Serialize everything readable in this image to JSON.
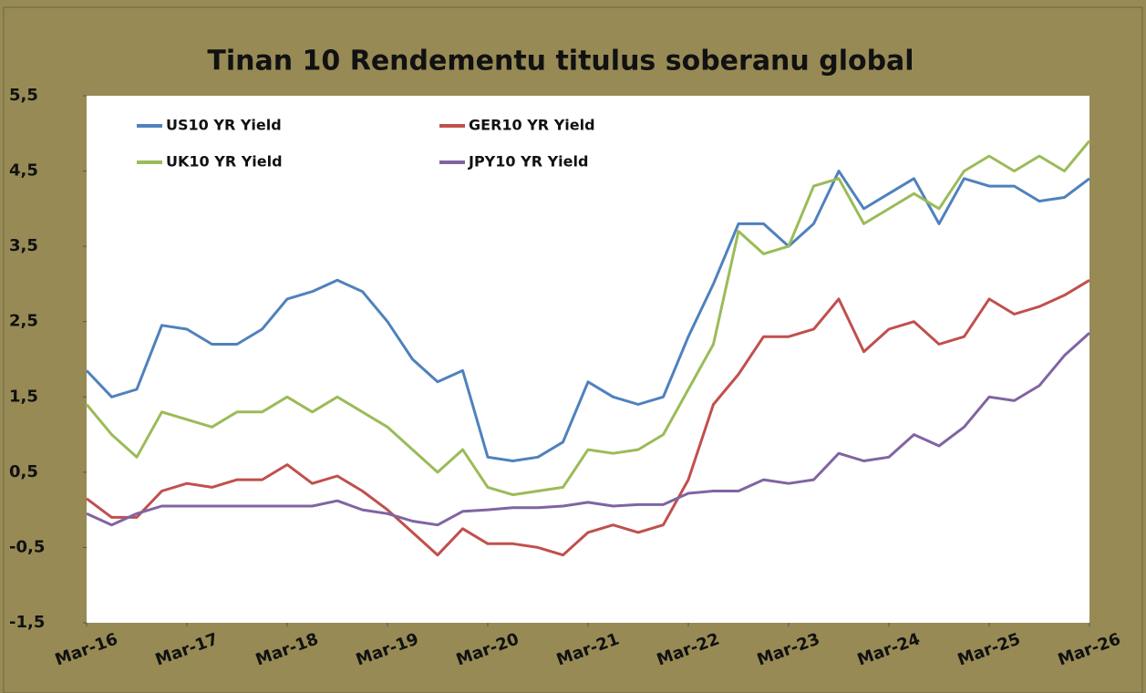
{
  "chart_data": {
    "type": "line",
    "title": "Tinan 10 Rendementu titulus soberanu global",
    "x": [
      2016.17,
      2016.42,
      2016.67,
      2016.92,
      2017.17,
      2017.42,
      2017.67,
      2017.92,
      2018.17,
      2018.42,
      2018.67,
      2018.92,
      2019.17,
      2019.42,
      2019.67,
      2019.92,
      2020.17,
      2020.42,
      2020.67,
      2020.92,
      2021.17,
      2021.42,
      2021.67,
      2021.92,
      2022.17,
      2022.42,
      2022.67,
      2022.92,
      2023.17,
      2023.42,
      2023.67,
      2023.92,
      2024.17,
      2024.42,
      2024.67,
      2024.92,
      2025.17,
      2025.42,
      2025.67,
      2025.92,
      2026.17
    ],
    "series": [
      {
        "name": "US10 YR Yield",
        "color": "#4f81bd",
        "values": [
          1.85,
          1.5,
          1.6,
          2.45,
          2.4,
          2.2,
          2.2,
          2.4,
          2.8,
          2.9,
          3.05,
          2.9,
          2.5,
          2.0,
          1.7,
          1.85,
          0.7,
          0.65,
          0.7,
          0.9,
          1.7,
          1.5,
          1.4,
          1.5,
          2.3,
          3.0,
          3.8,
          3.8,
          3.5,
          3.8,
          4.5,
          4.0,
          4.2,
          4.4,
          3.8,
          4.4,
          4.3,
          4.3,
          4.1,
          4.15,
          4.4
        ]
      },
      {
        "name": "GER10 YR Yield",
        "color": "#c0504d",
        "values": [
          0.15,
          -0.1,
          -0.1,
          0.25,
          0.35,
          0.3,
          0.4,
          0.4,
          0.6,
          0.35,
          0.45,
          0.25,
          0.0,
          -0.3,
          -0.6,
          -0.25,
          -0.45,
          -0.45,
          -0.5,
          -0.6,
          -0.3,
          -0.2,
          -0.3,
          -0.2,
          0.4,
          1.4,
          1.8,
          2.3,
          2.3,
          2.4,
          2.8,
          2.1,
          2.4,
          2.5,
          2.2,
          2.3,
          2.8,
          2.6,
          2.7,
          2.85,
          3.05
        ]
      },
      {
        "name": "UK10 YR Yield",
        "color": "#9bbb59",
        "values": [
          1.4,
          1.0,
          0.7,
          1.3,
          1.2,
          1.1,
          1.3,
          1.3,
          1.5,
          1.3,
          1.5,
          1.3,
          1.1,
          0.8,
          0.5,
          0.8,
          0.3,
          0.2,
          0.25,
          0.3,
          0.8,
          0.75,
          0.8,
          1.0,
          1.6,
          2.2,
          3.7,
          3.4,
          3.5,
          4.3,
          4.4,
          3.8,
          4.0,
          4.2,
          4.0,
          4.5,
          4.7,
          4.5,
          4.7,
          4.5,
          4.9
        ]
      },
      {
        "name": "JPY10 YR Yield",
        "color": "#8064a2",
        "values": [
          -0.05,
          -0.2,
          -0.05,
          0.05,
          0.05,
          0.05,
          0.05,
          0.05,
          0.05,
          0.05,
          0.12,
          0.0,
          -0.05,
          -0.15,
          -0.2,
          -0.02,
          0.0,
          0.03,
          0.03,
          0.05,
          0.1,
          0.05,
          0.07,
          0.07,
          0.22,
          0.25,
          0.25,
          0.4,
          0.35,
          0.4,
          0.75,
          0.65,
          0.7,
          1.0,
          0.85,
          1.1,
          1.5,
          1.45,
          1.65,
          2.05,
          2.35
        ]
      }
    ],
    "xlim": [
      2016.17,
      2026.17
    ],
    "xticks": [
      {
        "value": 2016.17,
        "label": "Mar-16"
      },
      {
        "value": 2017.17,
        "label": "Mar-17"
      },
      {
        "value": 2018.17,
        "label": "Mar-18"
      },
      {
        "value": 2019.17,
        "label": "Mar-19"
      },
      {
        "value": 2020.17,
        "label": "Mar-20"
      },
      {
        "value": 2021.17,
        "label": "Mar-21"
      },
      {
        "value": 2022.17,
        "label": "Mar-22"
      },
      {
        "value": 2023.17,
        "label": "Mar-23"
      },
      {
        "value": 2024.17,
        "label": "Mar-24"
      },
      {
        "value": 2025.17,
        "label": "Mar-25"
      },
      {
        "value": 2026.17,
        "label": "Mar-26"
      }
    ],
    "ylim": [
      -1.5,
      5.5
    ],
    "yticks": [
      {
        "value": 5.5,
        "label": "5,5"
      },
      {
        "value": 4.5,
        "label": "4,5"
      },
      {
        "value": 3.5,
        "label": "3,5"
      },
      {
        "value": 2.5,
        "label": "2,5"
      },
      {
        "value": 1.5,
        "label": "1,5"
      },
      {
        "value": 0.5,
        "label": "0,5"
      },
      {
        "value": -0.5,
        "label": "-0,5"
      },
      {
        "value": -1.5,
        "label": "-1,5"
      }
    ]
  }
}
